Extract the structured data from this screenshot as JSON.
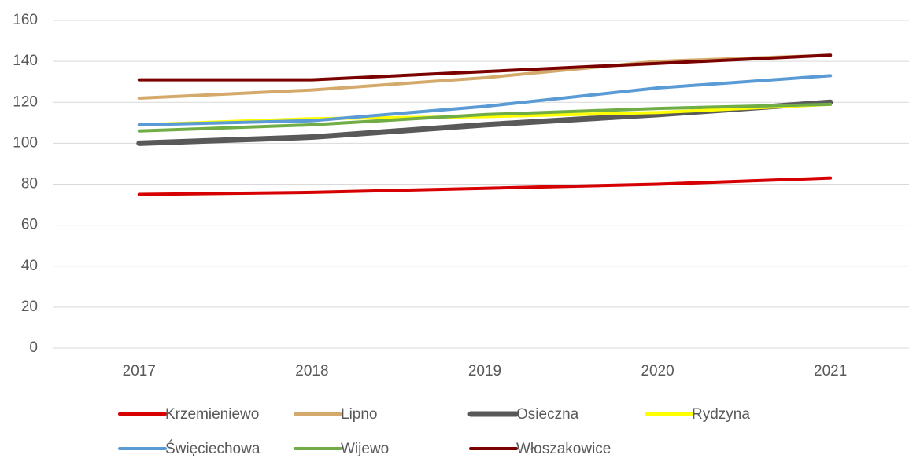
{
  "chart_data": {
    "type": "line",
    "categories": [
      "2017",
      "2018",
      "2019",
      "2020",
      "2021"
    ],
    "series": [
      {
        "name": "Krzemieniewo",
        "color": "#d60000",
        "values": [
          75,
          76,
          78,
          80,
          83
        ]
      },
      {
        "name": "Lipno",
        "color": "#d4aa6c",
        "values": [
          122,
          126,
          132,
          140,
          143
        ]
      },
      {
        "name": "Osieczna",
        "color": "#595959",
        "values": [
          100,
          103,
          109,
          114,
          120
        ]
      },
      {
        "name": "Rydzyna",
        "color": "#ffff00",
        "values": [
          109,
          112,
          113,
          115,
          119
        ]
      },
      {
        "name": "Święciechowa",
        "color": "#5b9bd5",
        "values": [
          109,
          111,
          118,
          127,
          133
        ]
      },
      {
        "name": "Wijewo",
        "color": "#70ad47",
        "values": [
          106,
          109,
          114,
          117,
          119
        ]
      },
      {
        "name": "Włoszakowice",
        "color": "#7b0000",
        "values": [
          131,
          131,
          135,
          139,
          143
        ]
      }
    ],
    "ylim": [
      0,
      160
    ],
    "yticks": [
      0,
      20,
      40,
      60,
      80,
      100,
      120,
      140,
      160
    ],
    "grid": true,
    "legend": "bottom"
  }
}
